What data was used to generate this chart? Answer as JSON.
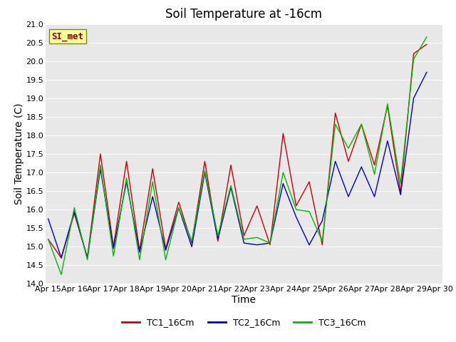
{
  "title": "Soil Temperature at -16cm",
  "xlabel": "Time",
  "ylabel": "Soil Temperature (C)",
  "ylim": [
    14.0,
    21.0
  ],
  "yticks": [
    14.0,
    14.5,
    15.0,
    15.5,
    16.0,
    16.5,
    17.0,
    17.5,
    18.0,
    18.5,
    19.0,
    19.5,
    20.0,
    20.5,
    21.0
  ],
  "xtick_labels": [
    "Apr 15",
    "Apr 16",
    "Apr 17",
    "Apr 18",
    "Apr 19",
    "Apr 20",
    "Apr 21",
    "Apr 22",
    "Apr 23",
    "Apr 24",
    "Apr 25",
    "Apr 26",
    "Apr 27",
    "Apr 28",
    "Apr 29",
    "Apr 30"
  ],
  "background_color": "#e8e8e8",
  "grid_color": "#ffffff",
  "legend_label": "SI_met",
  "series": [
    {
      "name": "TC1_16Cm",
      "color": "#cc0000",
      "y": [
        15.2,
        14.7,
        15.9,
        14.7,
        17.5,
        15.0,
        17.3,
        14.9,
        17.1,
        14.95,
        16.2,
        15.1,
        17.3,
        15.15,
        17.2,
        15.3,
        16.1,
        15.05,
        18.05,
        16.1,
        16.75,
        15.05,
        18.6,
        17.3,
        18.3,
        17.2,
        18.8,
        16.45,
        20.2,
        20.45
      ]
    },
    {
      "name": "TC2_16Cm",
      "color": "#0000cc",
      "y": [
        15.75,
        14.7,
        15.95,
        14.7,
        17.1,
        14.95,
        16.75,
        14.85,
        16.35,
        14.9,
        16.05,
        15.0,
        17.0,
        15.2,
        16.6,
        15.1,
        15.05,
        15.1,
        16.7,
        15.8,
        15.05,
        15.7,
        17.3,
        16.35,
        17.15,
        16.35,
        17.85,
        16.4,
        19.0,
        19.7
      ]
    },
    {
      "name": "TC3_16Cm",
      "color": "#00bb00",
      "y": [
        15.2,
        14.25,
        16.05,
        14.65,
        17.2,
        14.75,
        16.85,
        14.65,
        16.75,
        14.65,
        16.05,
        15.15,
        17.05,
        15.3,
        16.65,
        15.2,
        15.25,
        15.1,
        17.0,
        16.0,
        15.95,
        15.15,
        18.3,
        17.65,
        18.3,
        16.95,
        18.85,
        16.7,
        20.05,
        20.65
      ]
    }
  ],
  "legend_box_color": "#ffff99",
  "legend_box_border": "#888800",
  "legend_text_color": "#880000",
  "title_fontsize": 12,
  "axis_label_fontsize": 10,
  "tick_fontsize": 8
}
